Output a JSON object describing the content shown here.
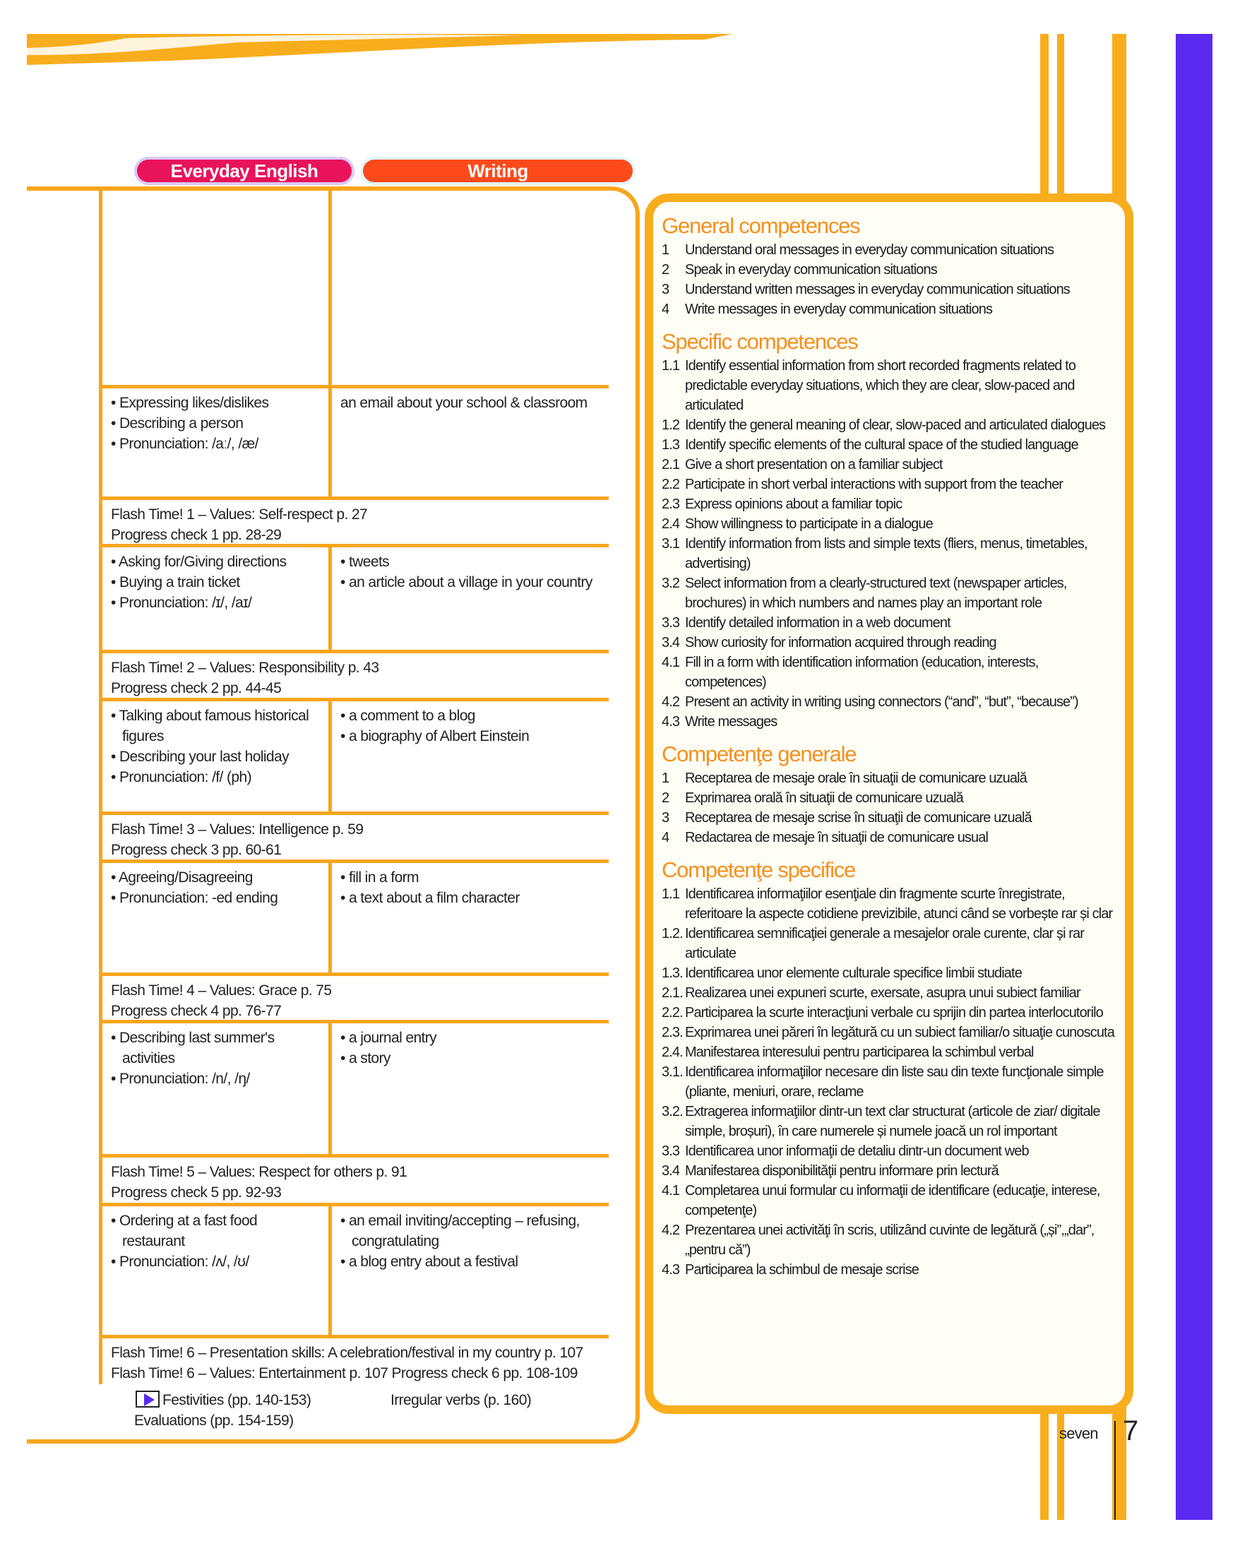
{
  "tabs": [
    "Everyday English",
    "Writing"
  ],
  "rows": [
    {
      "type": "unit",
      "ee": [],
      "writing": []
    },
    {
      "type": "unit",
      "ee": [
        "• Expressing likes/dislikes",
        "• Describing a person",
        "• Pronunciation: /aː/, /æ/"
      ],
      "writing": [
        "an email about your school & classroom"
      ]
    },
    {
      "type": "flash",
      "lines": [
        "Flash Time! 1 – Values: Self-respect p. 27",
        "Progress check 1 pp. 28-29"
      ]
    },
    {
      "type": "unit",
      "ee": [
        "• Asking for/Giving directions",
        "• Buying a train ticket",
        "• Pronunciation: /ɪ/, /aɪ/"
      ],
      "writing": [
        "• tweets",
        "• an article about a village in your country"
      ]
    },
    {
      "type": "flash",
      "lines": [
        "Flash Time! 2 – Values: Responsibility p. 43",
        "Progress check 2 pp. 44-45"
      ]
    },
    {
      "type": "unit",
      "ee": [
        "• Talking about famous historical figures",
        "• Describing your last holiday",
        "• Pronunciation: /f/ (ph)"
      ],
      "writing": [
        "• a comment to a blog",
        "• a biography of Albert Einstein"
      ]
    },
    {
      "type": "flash",
      "lines": [
        "Flash Time! 3 – Values: Intelligence p. 59",
        "Progress check 3 pp. 60-61"
      ]
    },
    {
      "type": "unit",
      "ee": [
        "• Agreeing/Disagreeing",
        "• Pronunciation: -ed ending"
      ],
      "writing": [
        "• fill in a form",
        "• a text about a film character"
      ]
    },
    {
      "type": "flash",
      "lines": [
        "Flash Time! 4 – Values: Grace p. 75",
        "Progress check 4 pp. 76-77"
      ]
    },
    {
      "type": "unit",
      "ee": [
        "• Describing last summer's activities",
        "• Pronunciation: /n/, /ŋ/"
      ],
      "writing": [
        "• a journal entry",
        "• a story"
      ]
    },
    {
      "type": "flash",
      "lines": [
        "Flash Time! 5 – Values: Respect for others p. 91",
        "Progress check 5 pp. 92-93"
      ]
    },
    {
      "type": "unit",
      "ee": [
        "• Ordering at a fast food restaurant",
        "• Pronunciation: /ʌ/, /ʊ/"
      ],
      "writing": [
        "• an email inviting/accepting – refusing, congratulating",
        "• a blog entry about a festival"
      ]
    },
    {
      "type": "flash",
      "lines": [
        "Flash Time! 6 – Presentation skills: A celebration/festival in my country p. 107",
        "Flash Time! 6 – Values: Entertainment p. 107    Progress check 6 pp. 108-109"
      ]
    }
  ],
  "footer": {
    "festivities": "Festivities (pp. 140-153)",
    "irregular": "Irregular verbs (p. 160)",
    "evaluations": "Evaluations (pp. 154-159)",
    "play_icon": "play-icon"
  },
  "panel": [
    {
      "heading": "General competences",
      "items": [
        [
          "1",
          "Understand oral messages in everyday communication situations"
        ],
        [
          "2",
          "Speak in everyday communication situations"
        ],
        [
          "3",
          "Understand written messages in everyday communication situations"
        ],
        [
          "4",
          "Write messages in everyday communication situations"
        ]
      ]
    },
    {
      "heading": "Specific competences",
      "items": [
        [
          "1.1",
          "Identify essential information from short recorded fragments related to predictable everyday situations, which they are clear, slow-paced and articulated"
        ],
        [
          "1.2",
          "Identify the general meaning of clear, slow-paced and articulated dialogues"
        ],
        [
          "1.3",
          "Identify specific elements of the cultural space of the studied language"
        ],
        [
          "2.1",
          "Give a short presentation on a familiar subject"
        ],
        [
          "2.2",
          "Participate in short verbal interactions with support from the teacher"
        ],
        [
          "2.3",
          "Express opinions about a familiar topic"
        ],
        [
          "2.4",
          "Show willingness to participate in a dialogue"
        ],
        [
          "3.1",
          "Identify information from lists and simple texts (fliers, menus, timetables, advertising)"
        ],
        [
          "3.2",
          "Select information from a clearly-structured text (newspaper articles, brochures) in which numbers and names play an important role"
        ],
        [
          "3.3",
          "Identify detailed information in a web document"
        ],
        [
          "3.4",
          "Show curiosity for information  acquired through reading"
        ],
        [
          "4.1",
          "Fill in a form with identification information (education, interests, competences)"
        ],
        [
          "4.2",
          "Present an activity in writing using connectors (“and”, “but”, “because”)"
        ],
        [
          "4.3",
          "Write messages"
        ]
      ]
    },
    {
      "heading": "Competenţe generale",
      "items": [
        [
          "1",
          "Receptarea de mesaje orale în situaţii de comunicare uzuală"
        ],
        [
          "2",
          "Exprimarea orală în situaţii de comunicare uzuală"
        ],
        [
          "3",
          "Receptarea de mesaje scrise în situaţii de comunicare uzuală"
        ],
        [
          "4",
          "Redactarea de mesaje în situaţii de comunicare usual"
        ]
      ]
    },
    {
      "heading": "Competenţe specifice",
      "items": [
        [
          "1.1",
          "Identificarea informaţiilor esenţiale din fragmente scurte înregistrate, referitoare la aspecte cotidiene previzibile, atunci când se vorbește rar și clar"
        ],
        [
          "1.2.",
          "Identificarea semnificaţiei generale a mesajelor orale curente, clar și rar articulate"
        ],
        [
          "1.3.",
          "Identificarea unor elemente culturale specifice limbii studiate"
        ],
        [
          "2.1.",
          "Realizarea unei expuneri scurte, exersate, asupra unui subiect familiar"
        ],
        [
          "2.2.",
          "Participarea la scurte interacţiuni verbale cu sprijin din partea interlocutorilo"
        ],
        [
          "2.3.",
          "Exprimarea unei păreri în legătură cu un subiect familiar/o situaţie cunoscuta"
        ],
        [
          "2.4.",
          "Manifestarea interesului pentru participarea la schimbul verbal"
        ],
        [
          "3.1.",
          "Identificarea informaţiilor necesare din liste sau din texte funcţionale simple (pliante, meniuri, orare, reclame"
        ],
        [
          "3.2.",
          "Extragerea informaţiilor dintr-un text clar structurat (articole de ziar/ digitale simple, broșuri), în care numerele și numele joacă un rol important"
        ],
        [
          "3.3",
          "Identificarea unor informaţii de detaliu dintr-un document web"
        ],
        [
          "3.4",
          "Manifestarea disponibilităţii pentru informare prin lectură"
        ],
        [
          "4.1",
          "Completarea unui formular cu informaţii de identificare (educaţie, interese, competenţe)"
        ],
        [
          "4.2",
          "Prezentarea unei activităţi în scris, utilizând cuvinte de legătură („și”,„dar”,„pentru că”)"
        ],
        [
          "4.3",
          "Participarea la schimbul de mesaje scrise"
        ]
      ]
    }
  ],
  "page": {
    "word": "seven",
    "number": "7"
  },
  "colors": {
    "orange": "#f8a51c",
    "pink": "#e8135a",
    "red_orange": "#fc4a1a",
    "purple": "#5a2af0",
    "heading": "#f5901e"
  }
}
